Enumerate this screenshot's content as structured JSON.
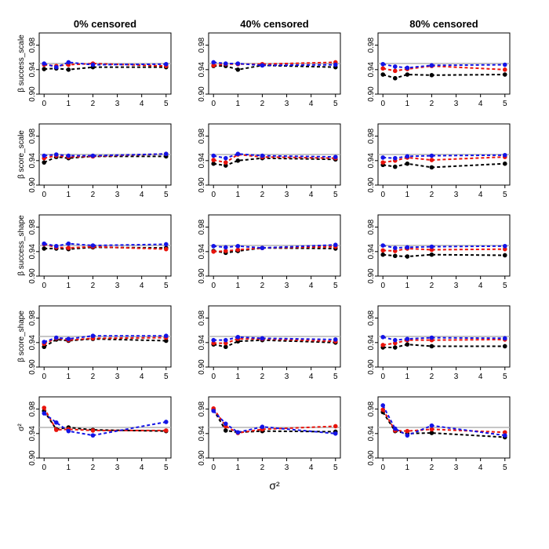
{
  "chart_data": {
    "type": "line",
    "column_titles": [
      "0% censored",
      "40% censored",
      "80% censored"
    ],
    "row_labels": [
      "β success_scale",
      "β score_scale",
      "β success_shape",
      "β score_shape",
      "σ²"
    ],
    "xlabel": "σ²",
    "x": [
      0,
      0.5,
      1,
      2,
      5
    ],
    "xticks": [
      0,
      1,
      2,
      3,
      4,
      5
    ],
    "ylim": [
      0.9,
      1.0
    ],
    "yticks": [
      "0.90",
      "0.94",
      "0.98"
    ],
    "reference_line": 0.95,
    "series_colors": [
      "#000000",
      "#e8140c",
      "#1414e6"
    ],
    "reference_color": "#b4b4b4",
    "grid": false,
    "panels": [
      [
        {
          "series": [
            [
              0.941,
              0.942,
              0.94,
              0.944,
              0.944
            ],
            [
              0.948,
              0.946,
              0.948,
              0.95,
              0.946
            ],
            [
              0.95,
              0.944,
              0.952,
              0.948,
              0.949
            ]
          ]
        },
        {
          "series": [
            [
              0.937,
              0.946,
              0.944,
              0.947,
              0.947
            ],
            [
              0.944,
              0.948,
              0.946,
              0.947,
              0.951
            ],
            [
              0.948,
              0.95,
              0.948,
              0.948,
              0.951
            ]
          ]
        },
        {
          "series": [
            [
              0.945,
              0.945,
              0.944,
              0.947,
              0.946
            ],
            [
              0.952,
              0.947,
              0.946,
              0.948,
              0.944
            ],
            [
              0.953,
              0.949,
              0.953,
              0.95,
              0.952
            ]
          ]
        },
        {
          "series": [
            [
              0.933,
              0.945,
              0.943,
              0.946,
              0.943
            ],
            [
              0.938,
              0.947,
              0.944,
              0.947,
              0.948
            ],
            [
              0.941,
              0.948,
              0.946,
              0.951,
              0.951
            ]
          ]
        },
        {
          "series": [
            [
              0.977,
              0.947,
              0.95,
              0.946,
              0.944
            ],
            [
              0.982,
              0.946,
              0.947,
              0.945,
              0.945
            ],
            [
              0.973,
              0.958,
              0.944,
              0.937,
              0.959
            ]
          ]
        }
      ],
      [
        {
          "series": [
            [
              0.946,
              0.946,
              0.94,
              0.947,
              0.944
            ],
            [
              0.947,
              0.949,
              0.949,
              0.949,
              0.952
            ],
            [
              0.952,
              0.95,
              0.95,
              0.947,
              0.948
            ]
          ]
        },
        {
          "series": [
            [
              0.935,
              0.932,
              0.94,
              0.944,
              0.942
            ],
            [
              0.941,
              0.937,
              0.95,
              0.946,
              0.944
            ],
            [
              0.948,
              0.944,
              0.951,
              0.948,
              0.946
            ]
          ]
        },
        {
          "series": [
            [
              0.941,
              0.938,
              0.941,
              0.946,
              0.945
            ],
            [
              0.94,
              0.941,
              0.943,
              0.946,
              0.948
            ],
            [
              0.949,
              0.947,
              0.949,
              0.946,
              0.951
            ]
          ]
        },
        {
          "series": [
            [
              0.937,
              0.933,
              0.942,
              0.944,
              0.94
            ],
            [
              0.939,
              0.939,
              0.946,
              0.946,
              0.942
            ],
            [
              0.944,
              0.944,
              0.949,
              0.947,
              0.945
            ]
          ]
        },
        {
          "series": [
            [
              0.979,
              0.945,
              0.942,
              0.944,
              0.943
            ],
            [
              0.981,
              0.952,
              0.941,
              0.947,
              0.952
            ],
            [
              0.977,
              0.956,
              0.942,
              0.951,
              0.94
            ]
          ]
        }
      ],
      [
        {
          "series": [
            [
              0.932,
              0.926,
              0.932,
              0.931,
              0.932
            ],
            [
              0.942,
              0.938,
              0.941,
              0.946,
              0.94
            ],
            [
              0.949,
              0.945,
              0.943,
              0.947,
              0.948
            ]
          ]
        },
        {
          "series": [
            [
              0.933,
              0.93,
              0.935,
              0.929,
              0.935
            ],
            [
              0.937,
              0.94,
              0.945,
              0.941,
              0.946
            ],
            [
              0.945,
              0.944,
              0.947,
              0.948,
              0.949
            ]
          ]
        },
        {
          "series": [
            [
              0.935,
              0.933,
              0.932,
              0.935,
              0.934
            ],
            [
              0.942,
              0.941,
              0.945,
              0.943,
              0.944
            ],
            [
              0.95,
              0.946,
              0.947,
              0.948,
              0.949
            ]
          ]
        },
        {
          "series": [
            [
              0.932,
              0.932,
              0.937,
              0.934,
              0.934
            ],
            [
              0.936,
              0.939,
              0.944,
              0.944,
              0.945
            ],
            [
              0.949,
              0.944,
              0.946,
              0.948,
              0.947
            ]
          ]
        },
        {
          "series": [
            [
              0.975,
              0.944,
              0.94,
              0.941,
              0.934
            ],
            [
              0.979,
              0.945,
              0.944,
              0.947,
              0.942
            ],
            [
              0.986,
              0.948,
              0.937,
              0.953,
              0.937
            ]
          ]
        }
      ]
    ]
  }
}
